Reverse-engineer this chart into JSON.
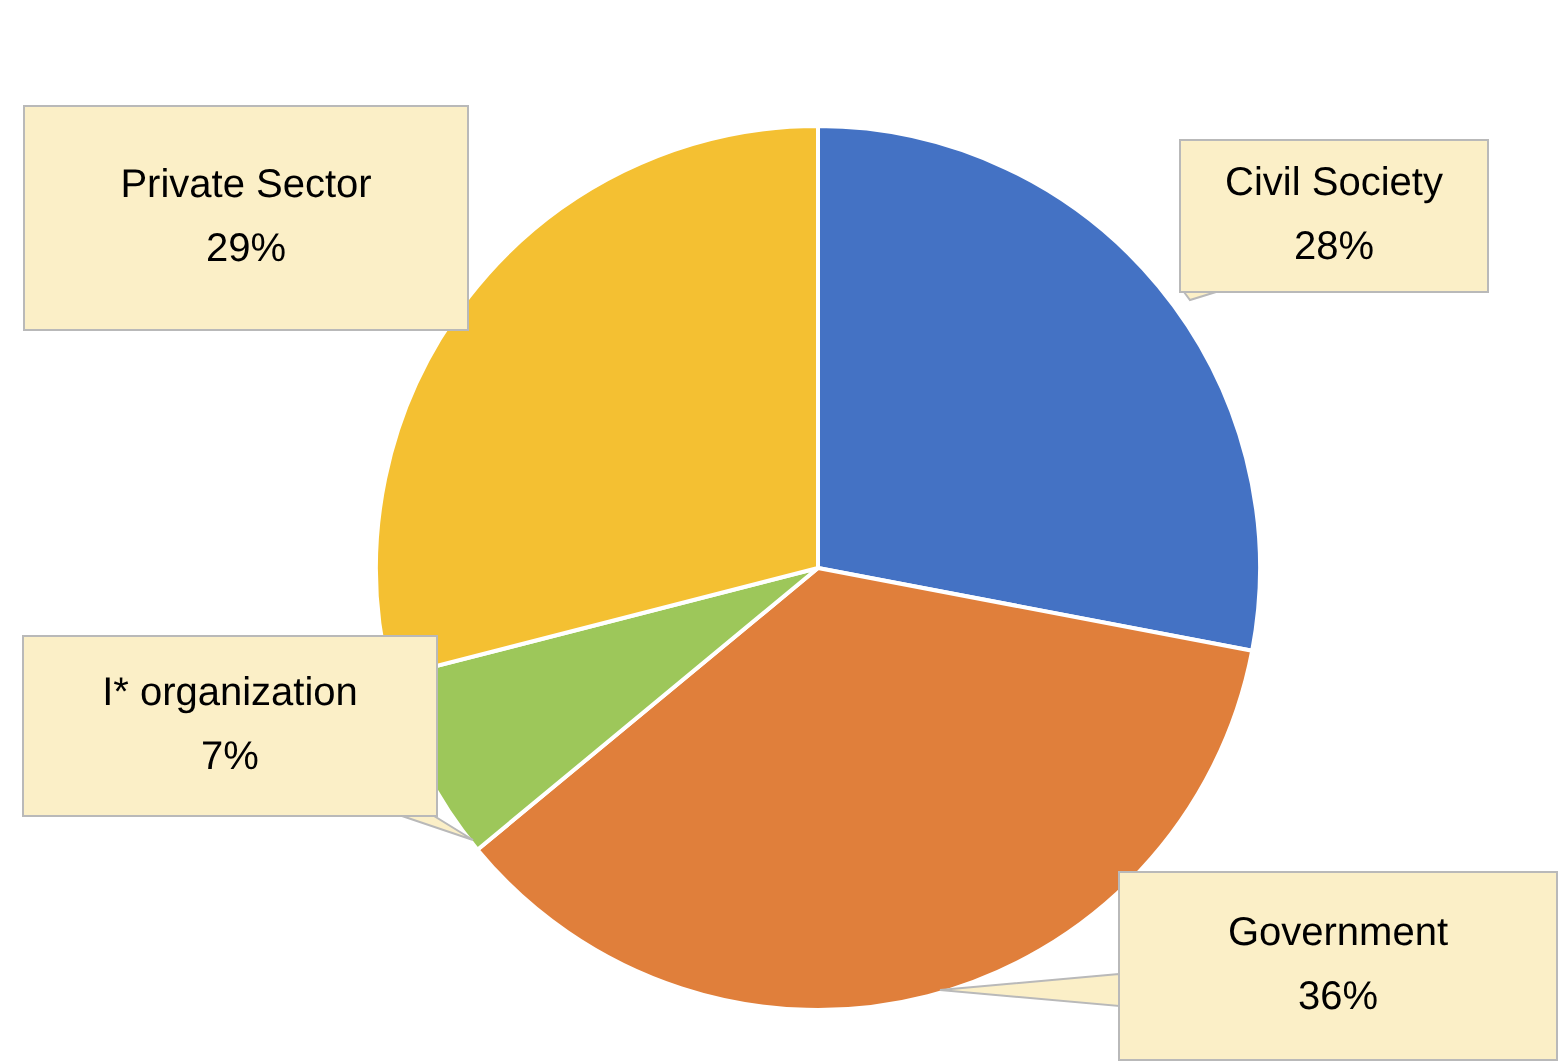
{
  "chart_data": {
    "type": "pie",
    "categories": [
      "Civil Society",
      "Government",
      "I* organization",
      "Private Sector"
    ],
    "values": [
      28,
      36,
      7,
      29
    ],
    "value_labels": [
      "28%",
      "36%",
      "7%",
      "29%"
    ],
    "colors": [
      "#4472c4",
      "#e07f3b",
      "#9dc75a",
      "#f4c032"
    ],
    "legend": false
  }
}
